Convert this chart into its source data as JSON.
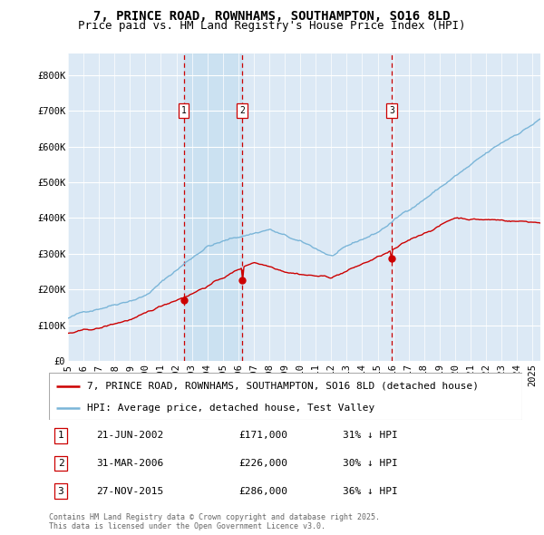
{
  "title": "7, PRINCE ROAD, ROWNHAMS, SOUTHAMPTON, SO16 8LD",
  "subtitle": "Price paid vs. HM Land Registry's House Price Index (HPI)",
  "ylabel_ticks": [
    "£0",
    "£100K",
    "£200K",
    "£300K",
    "£400K",
    "£500K",
    "£600K",
    "£700K",
    "£800K"
  ],
  "ytick_values": [
    0,
    100000,
    200000,
    300000,
    400000,
    500000,
    600000,
    700000,
    800000
  ],
  "ylim": [
    0,
    860000
  ],
  "xlim_start": 1995.0,
  "xlim_end": 2025.5,
  "hpi_color": "#7ab5d8",
  "price_color": "#cc0000",
  "background_color": "#dce9f5",
  "shade_color": "#c5dff0",
  "grid_color": "#ffffff",
  "sale_dates": [
    2002.47,
    2006.25,
    2015.91
  ],
  "sale_prices": [
    171000,
    226000,
    286000
  ],
  "sale_labels": [
    "1",
    "2",
    "3"
  ],
  "sale_label_row": [
    "21-JUN-2002",
    "31-MAR-2006",
    "27-NOV-2015"
  ],
  "sale_price_row": [
    "£171,000",
    "£226,000",
    "£286,000"
  ],
  "sale_hpi_row": [
    "31% ↓ HPI",
    "30% ↓ HPI",
    "36% ↓ HPI"
  ],
  "legend_line1": "7, PRINCE ROAD, ROWNHAMS, SOUTHAMPTON, SO16 8LD (detached house)",
  "legend_line2": "HPI: Average price, detached house, Test Valley",
  "footnote": "Contains HM Land Registry data © Crown copyright and database right 2025.\nThis data is licensed under the Open Government Licence v3.0.",
  "title_fontsize": 10,
  "subtitle_fontsize": 9,
  "tick_fontsize": 7.5,
  "legend_fontsize": 8,
  "table_fontsize": 8
}
